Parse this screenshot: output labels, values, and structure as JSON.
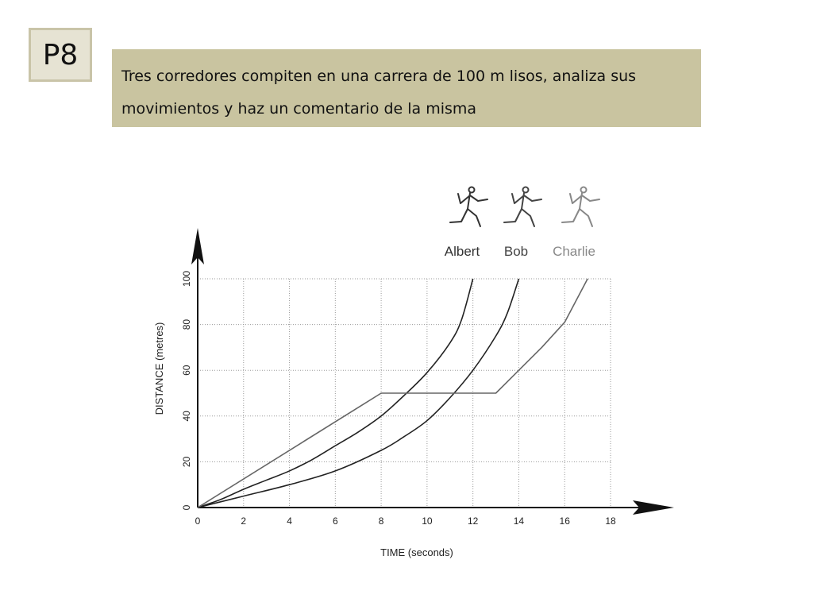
{
  "slide": {
    "badge": "P8",
    "prompt_line1": "Tres corredores compiten en una carrera de 100 m lisos, analiza sus",
    "prompt_line2": "movimientos y haz un comentario de la misma",
    "banner_color": "#c9c4a0",
    "badge_color": "#e6e3d3"
  },
  "chart_data": {
    "type": "line",
    "title": "",
    "xlabel": "TIME   (seconds)",
    "ylabel": "DISTANCE   (metres)",
    "xlim": [
      0,
      18
    ],
    "ylim": [
      0,
      100
    ],
    "xticks": [
      0,
      2,
      4,
      6,
      8,
      10,
      12,
      14,
      16,
      18
    ],
    "yticks": [
      0,
      20,
      40,
      60,
      80,
      100
    ],
    "grid": true,
    "legend_position": "top-right",
    "series": [
      {
        "name": "Albert",
        "color": "#222222",
        "icon": "runner-icon",
        "x": [
          0,
          1,
          2,
          3,
          4,
          5,
          6,
          7,
          8,
          9,
          10,
          11,
          11.5,
          12
        ],
        "y": [
          0,
          3.5,
          8,
          12,
          16,
          21,
          27,
          33,
          40,
          49,
          59,
          72,
          82,
          100
        ]
      },
      {
        "name": "Bob",
        "color": "#222222",
        "icon": "runner-icon",
        "x": [
          0,
          2,
          4,
          6,
          8,
          9,
          10,
          11,
          12,
          13,
          13.5,
          14
        ],
        "y": [
          0,
          5,
          10,
          16,
          25,
          31,
          38,
          48,
          60,
          75,
          85,
          100
        ]
      },
      {
        "name": "Charlie",
        "color": "#666666",
        "icon": "runner-icon",
        "x": [
          0,
          8,
          13,
          14,
          15,
          16,
          17
        ],
        "y": [
          0,
          50,
          50,
          60,
          70,
          81,
          100
        ]
      }
    ]
  }
}
